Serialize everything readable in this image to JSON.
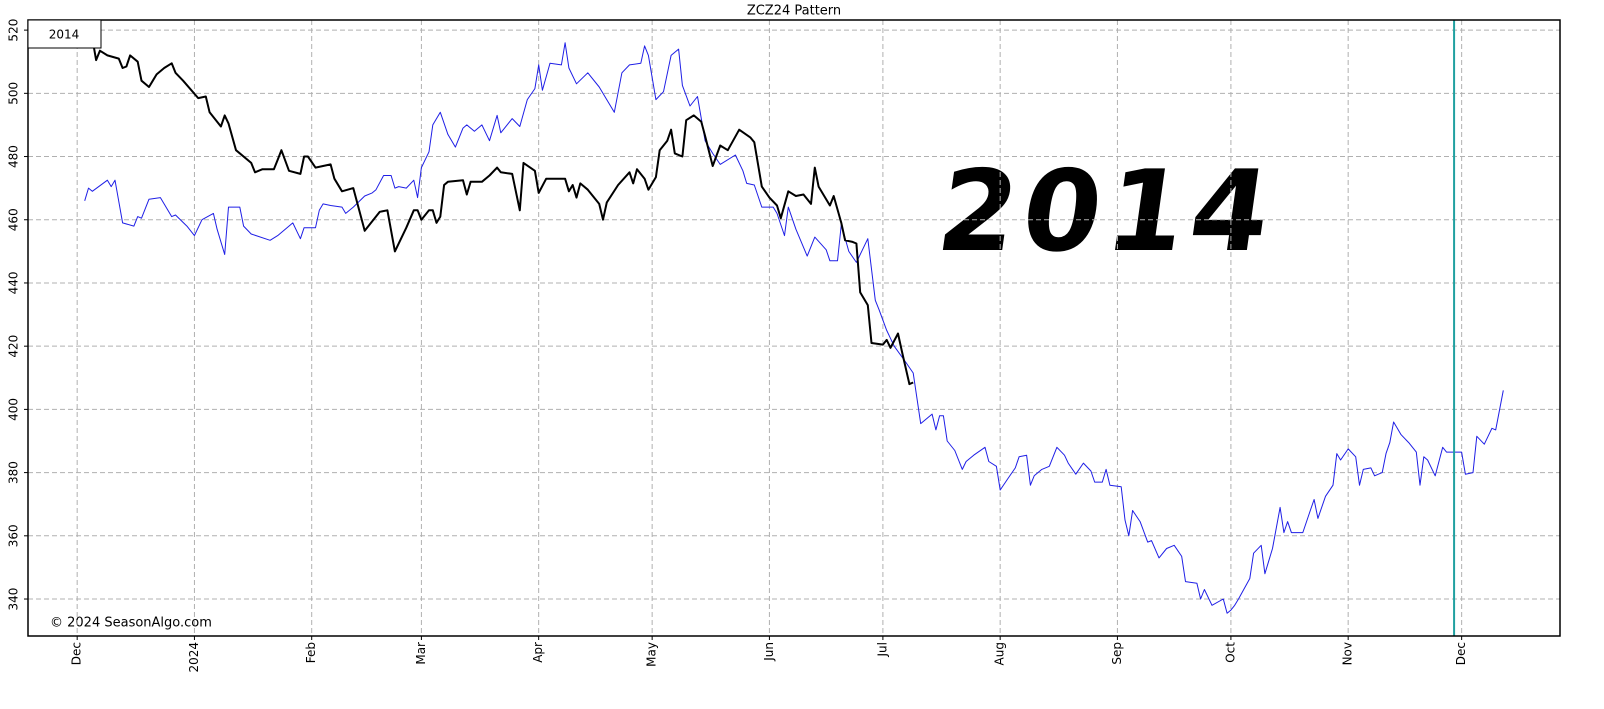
{
  "chart_data": {
    "type": "line",
    "title": "ZCZ24 Pattern",
    "annotation": "2014",
    "copyright": "© 2024 SeasonAlgo.com",
    "xlim": [
      -13,
      392
    ],
    "ylim": [
      328.3,
      523.2
    ],
    "xticks": [
      {
        "value": 0,
        "label": "Dec"
      },
      {
        "value": 31,
        "label": "2024"
      },
      {
        "value": 62,
        "label": "Feb"
      },
      {
        "value": 91,
        "label": "Mar"
      },
      {
        "value": 122,
        "label": "Apr"
      },
      {
        "value": 152,
        "label": "May"
      },
      {
        "value": 183,
        "label": "Jun"
      },
      {
        "value": 213,
        "label": "Jul"
      },
      {
        "value": 244,
        "label": "Aug"
      },
      {
        "value": 275,
        "label": "Sep"
      },
      {
        "value": 305,
        "label": "Oct"
      },
      {
        "value": 336,
        "label": "Nov"
      },
      {
        "value": 366,
        "label": "Dec"
      }
    ],
    "yticks": [
      340,
      360,
      380,
      400,
      420,
      440,
      460,
      480,
      500,
      520
    ],
    "grid": true,
    "legend": "top-left",
    "vline_x": 364,
    "vline_color": "#20a0a0",
    "series": [
      {
        "name": "2014",
        "color": "#1f1fe6",
        "width": 1,
        "x": [
          2,
          3,
          4,
          8,
          9,
          10,
          12,
          15,
          16,
          17,
          19,
          22,
          25,
          26,
          29,
          31,
          33,
          36,
          37,
          39,
          40,
          43,
          44,
          46,
          51,
          53,
          57,
          59,
          60,
          63,
          64,
          65,
          67,
          70,
          71,
          73,
          76,
          78,
          79,
          81,
          83,
          84,
          85,
          87,
          89,
          90,
          91,
          93,
          94,
          96,
          98,
          100,
          102,
          103,
          105,
          107,
          109,
          111,
          112,
          115,
          117,
          119,
          121,
          122,
          123,
          125,
          128,
          129,
          130,
          132,
          135,
          138,
          142,
          144,
          146,
          149,
          150,
          151,
          153,
          155,
          157,
          159,
          160,
          162,
          164,
          166,
          168,
          170,
          174,
          176,
          177,
          179,
          181,
          184,
          185,
          187,
          188,
          190,
          193,
          195,
          198,
          199,
          201,
          202,
          204,
          206,
          209,
          211,
          212,
          214,
          216,
          219,
          221,
          223,
          226,
          227,
          228,
          229,
          230,
          232,
          234,
          235,
          237,
          240,
          241,
          243,
          244,
          246,
          248,
          249,
          251,
          252,
          253,
          255,
          257,
          259,
          261,
          262,
          264,
          266,
          268,
          269,
          271,
          272,
          273,
          276,
          277,
          278,
          279,
          281,
          283,
          284,
          286,
          288,
          290,
          292,
          293,
          296,
          297,
          298,
          300,
          303,
          304,
          305,
          306,
          307,
          310,
          311,
          313,
          314,
          316,
          318,
          319,
          320,
          321,
          324,
          326,
          327,
          328,
          330,
          332,
          333,
          334,
          336,
          338,
          339,
          340,
          342,
          343,
          345,
          346,
          347,
          348,
          350,
          352,
          354,
          355,
          356,
          357,
          359,
          361,
          362,
          364,
          366,
          367,
          369,
          370,
          372,
          374,
          375,
          377
        ],
        "values": [
          466,
          470,
          469,
          472.5,
          470.5,
          472.5,
          459,
          458,
          461,
          460.5,
          466.5,
          467,
          461,
          461.5,
          458,
          455,
          460,
          462,
          457,
          449,
          464,
          464,
          458,
          455.5,
          453.5,
          455,
          459,
          454,
          457.5,
          457.5,
          463,
          465,
          464.5,
          464,
          462,
          464,
          467.5,
          468.5,
          469.5,
          474,
          474,
          470,
          470.5,
          470,
          472.5,
          467,
          476.5,
          481.5,
          490,
          494,
          487,
          483,
          489,
          490,
          488,
          490,
          485,
          493,
          487.5,
          492,
          489.5,
          498,
          501.5,
          509,
          501,
          509.5,
          509,
          516,
          508,
          503,
          506.5,
          502,
          494,
          506.5,
          509,
          509.5,
          515,
          512,
          498,
          500.5,
          512,
          514,
          502.5,
          496,
          499,
          485,
          481,
          477.5,
          480.5,
          475.5,
          471.5,
          471,
          464,
          464,
          462,
          455,
          464,
          457,
          448.5,
          454.5,
          450.5,
          447,
          447,
          458.5,
          450,
          446.5,
          454,
          434.5,
          431.5,
          425,
          420,
          415,
          411.5,
          395.5,
          398.5,
          393.5,
          398,
          398,
          390,
          387,
          381,
          383.5,
          385.5,
          388,
          383.5,
          382,
          374.5,
          378,
          381.5,
          385,
          385.5,
          376,
          379,
          381,
          382,
          388,
          385.5,
          383,
          379.5,
          383,
          380.5,
          377,
          377,
          381,
          376,
          375.5,
          365,
          360,
          368,
          364.5,
          358,
          358.5,
          353,
          356,
          357,
          353.5,
          345.5,
          345,
          340,
          343,
          338,
          340,
          335.5,
          336.5,
          338,
          340,
          346.5,
          354.5,
          357,
          348,
          356,
          369,
          361,
          364.5,
          361,
          361,
          368,
          371.5,
          365.5,
          372.5,
          376,
          386,
          384,
          387.5,
          385,
          376,
          381,
          381.5,
          379,
          380,
          386,
          389.5,
          396,
          392,
          389.5,
          386.5,
          376,
          385,
          384,
          379,
          388,
          386.5,
          386.5,
          386.5,
          379.5,
          380,
          391.5,
          389,
          394,
          393.5,
          406
        ]
      },
      {
        "color": "#000000",
        "width": 2,
        "x": [
          4,
          5,
          6,
          8,
          11,
          12,
          13,
          14,
          16,
          17,
          19,
          20,
          21,
          23,
          25,
          26,
          28,
          32,
          34,
          35,
          38,
          39,
          40,
          42,
          46,
          47,
          49,
          52,
          53,
          54,
          56,
          59,
          60,
          61,
          63,
          67,
          68,
          70,
          73,
          76,
          80,
          82,
          84,
          87,
          89,
          90,
          91,
          93,
          94,
          95,
          96,
          97,
          98,
          102,
          103,
          104,
          107,
          109,
          111,
          112,
          115,
          117,
          118,
          121,
          122,
          124,
          129,
          130,
          131,
          132,
          133,
          135,
          138,
          139,
          140,
          143,
          146,
          147,
          148,
          150,
          151,
          153,
          154,
          156,
          157,
          158,
          160,
          161,
          163,
          165,
          166,
          168,
          170,
          172,
          175,
          178,
          179,
          181,
          183,
          185,
          186,
          188,
          190,
          192,
          194,
          195,
          196,
          199,
          200,
          202,
          203,
          205,
          206,
          207,
          209,
          210,
          213,
          214,
          215,
          217,
          218,
          220,
          221
        ],
        "values": [
          517.5,
          510.5,
          513.5,
          512,
          511,
          508,
          508.5,
          512,
          510,
          504,
          502,
          504,
          506,
          508,
          509.5,
          506.5,
          504,
          498.5,
          499,
          494,
          489.5,
          493,
          490.5,
          482,
          478,
          475,
          476,
          476,
          479,
          482,
          475.5,
          474.5,
          480,
          480,
          476.5,
          477.5,
          473,
          469,
          470,
          456.5,
          462.5,
          463,
          450,
          457.5,
          463,
          463,
          460,
          463,
          463,
          459,
          461,
          471,
          472,
          472.5,
          468,
          472,
          472,
          474,
          476.5,
          475,
          474.5,
          463,
          478,
          475.5,
          468.5,
          473,
          473,
          469,
          471,
          467,
          471.5,
          469.5,
          465,
          460,
          465.5,
          471,
          475,
          471.5,
          476,
          473,
          469.5,
          473.5,
          482,
          485,
          488.5,
          481,
          480,
          491.5,
          493,
          491,
          486.5,
          477,
          483.5,
          482,
          488.5,
          486,
          484.5,
          470.5,
          467,
          464.5,
          460.5,
          469,
          467.5,
          468,
          465,
          476.5,
          470.5,
          464.5,
          467.5,
          459,
          453.5,
          453,
          452.5,
          437,
          433,
          421,
          420.5,
          422,
          419.5,
          424,
          418.5,
          408,
          408.5
        ]
      }
    ]
  }
}
